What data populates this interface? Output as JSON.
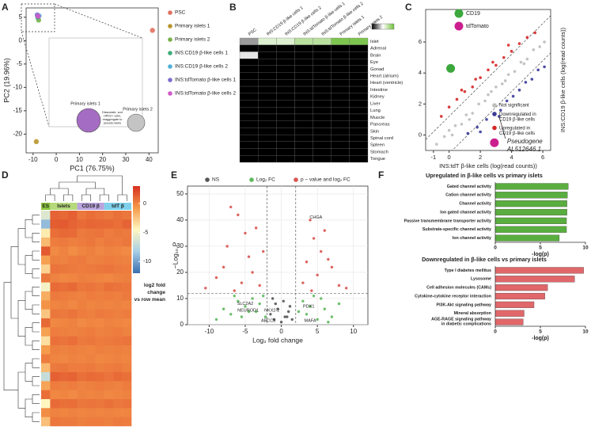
{
  "chart_data": [
    {
      "type": "scatter",
      "label": "A",
      "xlabel": "PC1 (76.75%)",
      "ylabel": "PC2 (19.96%)",
      "xlim": [
        -13,
        44
      ],
      "ylim": [
        -24,
        7
      ],
      "xticks": [
        -10,
        0,
        10,
        20,
        30,
        40
      ],
      "yticks": [
        -20,
        -15,
        -10,
        -5,
        0,
        5
      ],
      "series": [
        {
          "name": "PSC",
          "color": "#e2705f",
          "x": [
            41.5
          ],
          "y": [
            2.2
          ]
        },
        {
          "name": "Primary islets 1",
          "color": "#b8962e",
          "x": [
            -8.6
          ],
          "y": [
            -21.6
          ]
        },
        {
          "name": "Primary islets 2",
          "color": "#78b04a",
          "x": [
            -7.6
          ],
          "y": [
            4.4
          ]
        },
        {
          "name": "INS:CD19 β-like cells 1",
          "color": "#3fae7a",
          "x": [
            -8.0
          ],
          "y": [
            5.0
          ]
        },
        {
          "name": "INS:CD19 β-like cells 2",
          "color": "#4fb1d8",
          "x": [
            -7.4
          ],
          "y": [
            5.3
          ]
        },
        {
          "name": "INS:tdTomato β-like cells 1",
          "color": "#7b6fd0",
          "x": [
            -8.2
          ],
          "y": [
            5.5
          ]
        },
        {
          "name": "INS:tdTomato β-like cells 2",
          "color": "#d05ac8",
          "x": [
            -7.8
          ],
          "y": [
            5.2
          ]
        }
      ],
      "inset_labels": [
        "Primary islets 1",
        "Primary islets 2",
        "Dissociate, sort\nHPD2+ cells,\nreaggregate to\npseudo-islets"
      ]
    },
    {
      "type": "heatmap",
      "label": "B",
      "columns": [
        "PSC",
        "INS:CD19 β-like cells 1",
        "INS:CD19 β-like cells 2",
        "INS:tdTomato β-like cells 1",
        "INS:tdTomato β-like cells 2",
        "Primary islets 1",
        "Primary islets 2"
      ],
      "rows": [
        "Islet",
        "Adrenal",
        "Brain",
        "Eye",
        "Gonad",
        "Heart (atrium)",
        "Heart (ventricle)",
        "Intestine",
        "Kidney",
        "Liver",
        "Lung",
        "Muscle",
        "Pancreas",
        "Skin",
        "Spinal cord",
        "Spleen",
        "Stomach",
        "Tongue"
      ],
      "values": [
        [
          0.3,
          0.62,
          0.62,
          0.74,
          0.74,
          0.95,
          0.95
        ],
        [
          0,
          0,
          0,
          0,
          0,
          0,
          0
        ],
        [
          0.45,
          0,
          0,
          0,
          0,
          0,
          0
        ],
        [
          0,
          0,
          0,
          0,
          0,
          0,
          0
        ],
        [
          0,
          0,
          0,
          0,
          0,
          0,
          0
        ],
        [
          0,
          0,
          0,
          0,
          0,
          0,
          0
        ],
        [
          0,
          0,
          0,
          0,
          0,
          0,
          0
        ],
        [
          0,
          0,
          0,
          0,
          0,
          0,
          0
        ],
        [
          0,
          0,
          0,
          0,
          0,
          0,
          0
        ],
        [
          0,
          0,
          0,
          0,
          0,
          0,
          0
        ],
        [
          0,
          0,
          0,
          0,
          0,
          0,
          0
        ],
        [
          0,
          0,
          0,
          0,
          0,
          0,
          0
        ],
        [
          0,
          0,
          0,
          0,
          0,
          0,
          0
        ],
        [
          0,
          0,
          0,
          0,
          0,
          0,
          0
        ],
        [
          0,
          0,
          0,
          0,
          0,
          0,
          0
        ],
        [
          0,
          0,
          0,
          0,
          0,
          0,
          0
        ],
        [
          0,
          0,
          0,
          0,
          0,
          0,
          0
        ],
        [
          0,
          0,
          0,
          0,
          0,
          0,
          0
        ]
      ],
      "colorscale": [
        "#000000",
        "#ffffff",
        "#6fbf3a"
      ],
      "zlim": [
        0,
        1
      ]
    },
    {
      "type": "scatter",
      "label": "C",
      "xlabel": "INS:tdT β-like cells (log(read counts))",
      "ylabel": "INS:CD19 β-like cells (log(read counts))",
      "xlim": [
        -1.5,
        6.5
      ],
      "ylim": [
        -1,
        8.1
      ],
      "xticks": [
        -1,
        0,
        2,
        4,
        6
      ],
      "yticks": [
        0,
        2,
        4,
        6
      ],
      "series": [
        {
          "name": "Not significant",
          "color": "#bdbdbd",
          "x": [
            -0.8,
            -0.3,
            0,
            0.4,
            0.8,
            1.1,
            1.5,
            1.9,
            2.3,
            2.7,
            3.0,
            3.4,
            3.8,
            4.2,
            4.6,
            5.0,
            5.4,
            5.8,
            0.2,
            1.3,
            2.5,
            3.6,
            4.8,
            6.1
          ],
          "y": [
            -0.6,
            -0.1,
            0.3,
            0.6,
            0.7,
            1.3,
            1.4,
            2.0,
            2.2,
            2.8,
            3.1,
            3.3,
            3.9,
            4.1,
            4.7,
            4.9,
            5.5,
            5.7,
            0,
            1.0,
            2.6,
            3.5,
            4.6,
            6.0
          ]
        },
        {
          "name": "Downregulated in\nCD19 β-like cells",
          "color": "#3a3a99",
          "x": [
            1.2,
            1.8,
            2.4,
            2.9,
            3.3,
            3.7,
            4.1,
            4.5,
            4.9,
            5.3,
            5.7,
            6.1,
            3.2,
            2.0
          ],
          "y": [
            0.1,
            0.5,
            1.0,
            1.4,
            1.6,
            2.2,
            2.5,
            2.9,
            3.4,
            3.6,
            4.2,
            4.4,
            1.2,
            0.2
          ]
        },
        {
          "name": "Upregulated in\nCD19 β-like cells",
          "color": "#d62728",
          "x": [
            -0.5,
            0,
            0.5,
            1,
            1.5,
            2,
            2.5,
            3,
            3.5,
            4,
            4.5,
            5,
            5.5,
            0.8,
            1.7,
            2.8,
            3.8
          ],
          "y": [
            1.2,
            1.8,
            2.3,
            2.8,
            3.1,
            3.7,
            4.2,
            4.5,
            5.0,
            5.4,
            5.9,
            6.3,
            6.6,
            2.9,
            3.6,
            4.7,
            5.8
          ]
        }
      ],
      "highlights": [
        {
          "name": "CD19",
          "color": "#3ca83c",
          "x": 0.1,
          "y": 4.3
        },
        {
          "name": "tdTomato",
          "color": "#cc1f8f",
          "x": 2.9,
          "y": -0.5
        }
      ],
      "annotation": {
        "text": "Pseudogene\nAL512646.1",
        "x": 3.2,
        "y": 1.2
      }
    },
    {
      "type": "clustermap",
      "label": "D",
      "column_groups": [
        "ES",
        "Islets",
        "Islets",
        "Islets",
        "CD19 β",
        "CD19 β",
        "CD19 β",
        "tdT β",
        "tdT β",
        "tdT β"
      ],
      "group_colors": {
        "ES": "#8cc63f",
        "Islets": "#b5d97a",
        "CD19 β": "#b9a3dc",
        "tdT β": "#7fd0ea"
      },
      "values": [
        [
          -6,
          1.2,
          1.0,
          1.3,
          0.5,
          0.8,
          0.6,
          0.4,
          0.7,
          0.5
        ],
        [
          -9,
          1.4,
          1.5,
          1.2,
          0.9,
          1.1,
          1.0,
          1.0,
          0.8,
          1.2
        ],
        [
          -4,
          0.8,
          1.0,
          0.9,
          0.4,
          0.5,
          0.6,
          0.3,
          0.5,
          0.4
        ],
        [
          -2,
          0.3,
          0.4,
          0.2,
          0.3,
          0.5,
          0.2,
          0.4,
          0.3,
          0.5
        ],
        [
          1.5,
          -0.2,
          0.1,
          -0.3,
          0.0,
          0.2,
          -0.1,
          0.1,
          0.0,
          -0.2
        ],
        [
          -1,
          0.2,
          0.1,
          0.3,
          0.4,
          0.1,
          0.2,
          0.3,
          0.2,
          0.1
        ],
        [
          -3,
          0.6,
          0.5,
          0.4,
          0.3,
          0.4,
          0.5,
          0.6,
          0.4,
          0.3
        ],
        [
          0.5,
          0.1,
          -0.1,
          0.0,
          0.2,
          0.1,
          0.0,
          -0.1,
          0.1,
          0.2
        ],
        [
          -5,
          0.9,
          0.8,
          1.0,
          0.5,
          0.6,
          0.4,
          0.7,
          0.6,
          0.5
        ],
        [
          -1.5,
          0.4,
          0.3,
          0.2,
          0.1,
          0.3,
          0.2,
          0.3,
          0.2,
          0.4
        ],
        [
          -0.5,
          0.0,
          0.1,
          -0.1,
          0.2,
          0.0,
          0.1,
          0.0,
          0.1,
          0.0
        ],
        [
          -2.5,
          0.5,
          0.4,
          0.6,
          0.3,
          0.2,
          0.4,
          0.3,
          0.2,
          0.3
        ],
        [
          1.0,
          -0.1,
          0.0,
          0.1,
          -0.2,
          0.0,
          -0.1,
          0.1,
          0.0,
          -0.1
        ],
        [
          -1,
          0.3,
          0.2,
          0.1,
          0.2,
          0.3,
          0.1,
          0.2,
          0.3,
          0.1
        ],
        [
          -3.5,
          0.7,
          0.6,
          0.8,
          0.4,
          0.5,
          0.3,
          0.4,
          0.5,
          0.6
        ],
        [
          -0.8,
          0.2,
          0.1,
          0.2,
          0.1,
          0.0,
          0.2,
          0.1,
          0.2,
          0.1
        ],
        [
          0.3,
          0.0,
          -0.1,
          0.1,
          0.0,
          0.1,
          -0.1,
          0.0,
          0.1,
          0.0
        ],
        [
          -2,
          0.4,
          0.5,
          0.3,
          0.3,
          0.4,
          0.2,
          0.3,
          0.4,
          0.2
        ],
        [
          -7,
          1.3,
          1.1,
          1.2,
          0.7,
          0.9,
          0.8,
          0.6,
          0.9,
          0.7
        ],
        [
          -1.2,
          0.3,
          0.2,
          0.3,
          0.1,
          0.2,
          0.3,
          0.2,
          0.1,
          0.3
        ],
        [
          0.8,
          -0.1,
          0.0,
          -0.2,
          0.1,
          0.0,
          0.1,
          -0.1,
          0.0,
          0.1
        ],
        [
          -4.5,
          0.9,
          0.7,
          0.8,
          0.5,
          0.6,
          0.5,
          0.7,
          0.5,
          0.6
        ],
        [
          -0.3,
          0.1,
          0.0,
          0.1,
          0.0,
          0.1,
          0.0,
          0.1,
          0.0,
          0.0
        ],
        [
          -2.2,
          0.5,
          0.4,
          0.4,
          0.2,
          0.3,
          0.3,
          0.2,
          0.4,
          0.3
        ]
      ],
      "colorscale": [
        "#3a6fb0",
        "#a9cfe6",
        "#fff7c0",
        "#f59a4a",
        "#d7301f"
      ],
      "zlim": [
        -12,
        3
      ],
      "colorbar_ticks": [
        0,
        -5,
        -10
      ],
      "colorbar_label": "log2 fold\nchange\nvs row mean"
    },
    {
      "type": "scatter",
      "label": "E",
      "xlabel": "Log₂ fold change",
      "ylabel": "−Log₁₀ P",
      "xlim": [
        -13,
        12
      ],
      "ylim": [
        0,
        53
      ],
      "xticks": [
        -10,
        -5,
        0,
        5,
        10
      ],
      "yticks": [
        0,
        10,
        20,
        30,
        40,
        50
      ],
      "grid": true,
      "series": [
        {
          "name": "NS",
          "color": "#555555",
          "x": [
            -1.5,
            -1,
            -0.5,
            0,
            0.5,
            1,
            1.5,
            -0.8,
            0.3,
            1.2,
            -1.2,
            0.8
          ],
          "y": [
            4,
            2,
            6,
            1,
            3,
            5,
            2,
            8,
            9,
            7,
            10,
            3
          ]
        },
        {
          "name": "Log₂ FC",
          "color": "#5cb85c",
          "x": [
            -9,
            -8,
            -7,
            -6,
            -5.5,
            -5,
            -4,
            -3.5,
            -3,
            -2.5,
            3,
            3.5,
            4,
            4.5,
            5,
            6,
            7,
            8,
            -6.5,
            -4.5,
            5.5,
            6.5,
            -2.2,
            2.4
          ],
          "y": [
            2,
            6,
            4,
            9,
            3,
            7,
            10,
            5,
            8,
            11,
            9,
            4,
            7,
            11,
            2,
            6,
            3,
            8,
            11,
            5,
            10,
            1,
            3,
            5
          ]
        },
        {
          "name": "p − value and log₂ FC",
          "color": "#d9534f",
          "x": [
            -10.5,
            -9,
            -8,
            -7.5,
            -6,
            -5.5,
            -5,
            -4.5,
            -4,
            -3,
            -2.5,
            -7,
            -6.5,
            3,
            3.5,
            4,
            4.5,
            5,
            5.5,
            6,
            7,
            8,
            9,
            4.2,
            6.5,
            -3.5
          ],
          "y": [
            14,
            18,
            22,
            30,
            42,
            16,
            35,
            26,
            20,
            15,
            28,
            45,
            13,
            16,
            24,
            40,
            33,
            19,
            28,
            36,
            22,
            15,
            14,
            13,
            25,
            37
          ]
        }
      ],
      "gene_labels": [
        {
          "text": "CHGA",
          "x": 4.8,
          "y": 41
        },
        {
          "text": "SLC2A2",
          "x": -5,
          "y": 8
        },
        {
          "text": "NEUROD1",
          "x": -4.6,
          "y": 5.5
        },
        {
          "text": "NKX2-2",
          "x": -1.3,
          "y": 5.5
        },
        {
          "text": "ABCC8",
          "x": -1.8,
          "y": 1.5
        },
        {
          "text": "PDX1",
          "x": 3.8,
          "y": 7
        },
        {
          "text": "MAFA",
          "x": 4,
          "y": 1.5
        }
      ]
    },
    {
      "type": "barh",
      "label": "F",
      "title": "Upregulated in β-like cells vs primary islets",
      "categories": [
        "Gated channel activity",
        "Cation channel activity",
        "Channel activity",
        "Ion gated channel activity",
        "Passive transmembrane transporter activity",
        "Substrate-specific channel activity",
        "Ion channel activity"
      ],
      "values": [
        8.1,
        8.0,
        7.95,
        7.95,
        7.9,
        7.9,
        7.1
      ],
      "color": "#5aad3f",
      "xlim": [
        0,
        10
      ],
      "xticks": [
        0,
        5,
        10
      ],
      "xlabel": "-log(p)"
    },
    {
      "type": "barh",
      "title": "Downregulated in β-like cells vs primary islets",
      "categories": [
        "Type I diabetes mellitus",
        "Lysosome",
        "Cell adhesion molecules (CAMs)",
        "Cytokine-cytokine receptor interaction",
        "PI3K-Akt signaling pathway",
        "Mineral absorption",
        "AGE-RAGE signaling pathway\nin diabetic complications"
      ],
      "values": [
        9.8,
        8.8,
        5.8,
        5.5,
        4.3,
        3.2,
        3.1
      ],
      "color": "#e0676a",
      "xlim": [
        0,
        10
      ],
      "xticks": [
        0,
        5,
        10
      ],
      "xlabel": "-log(p)"
    }
  ]
}
